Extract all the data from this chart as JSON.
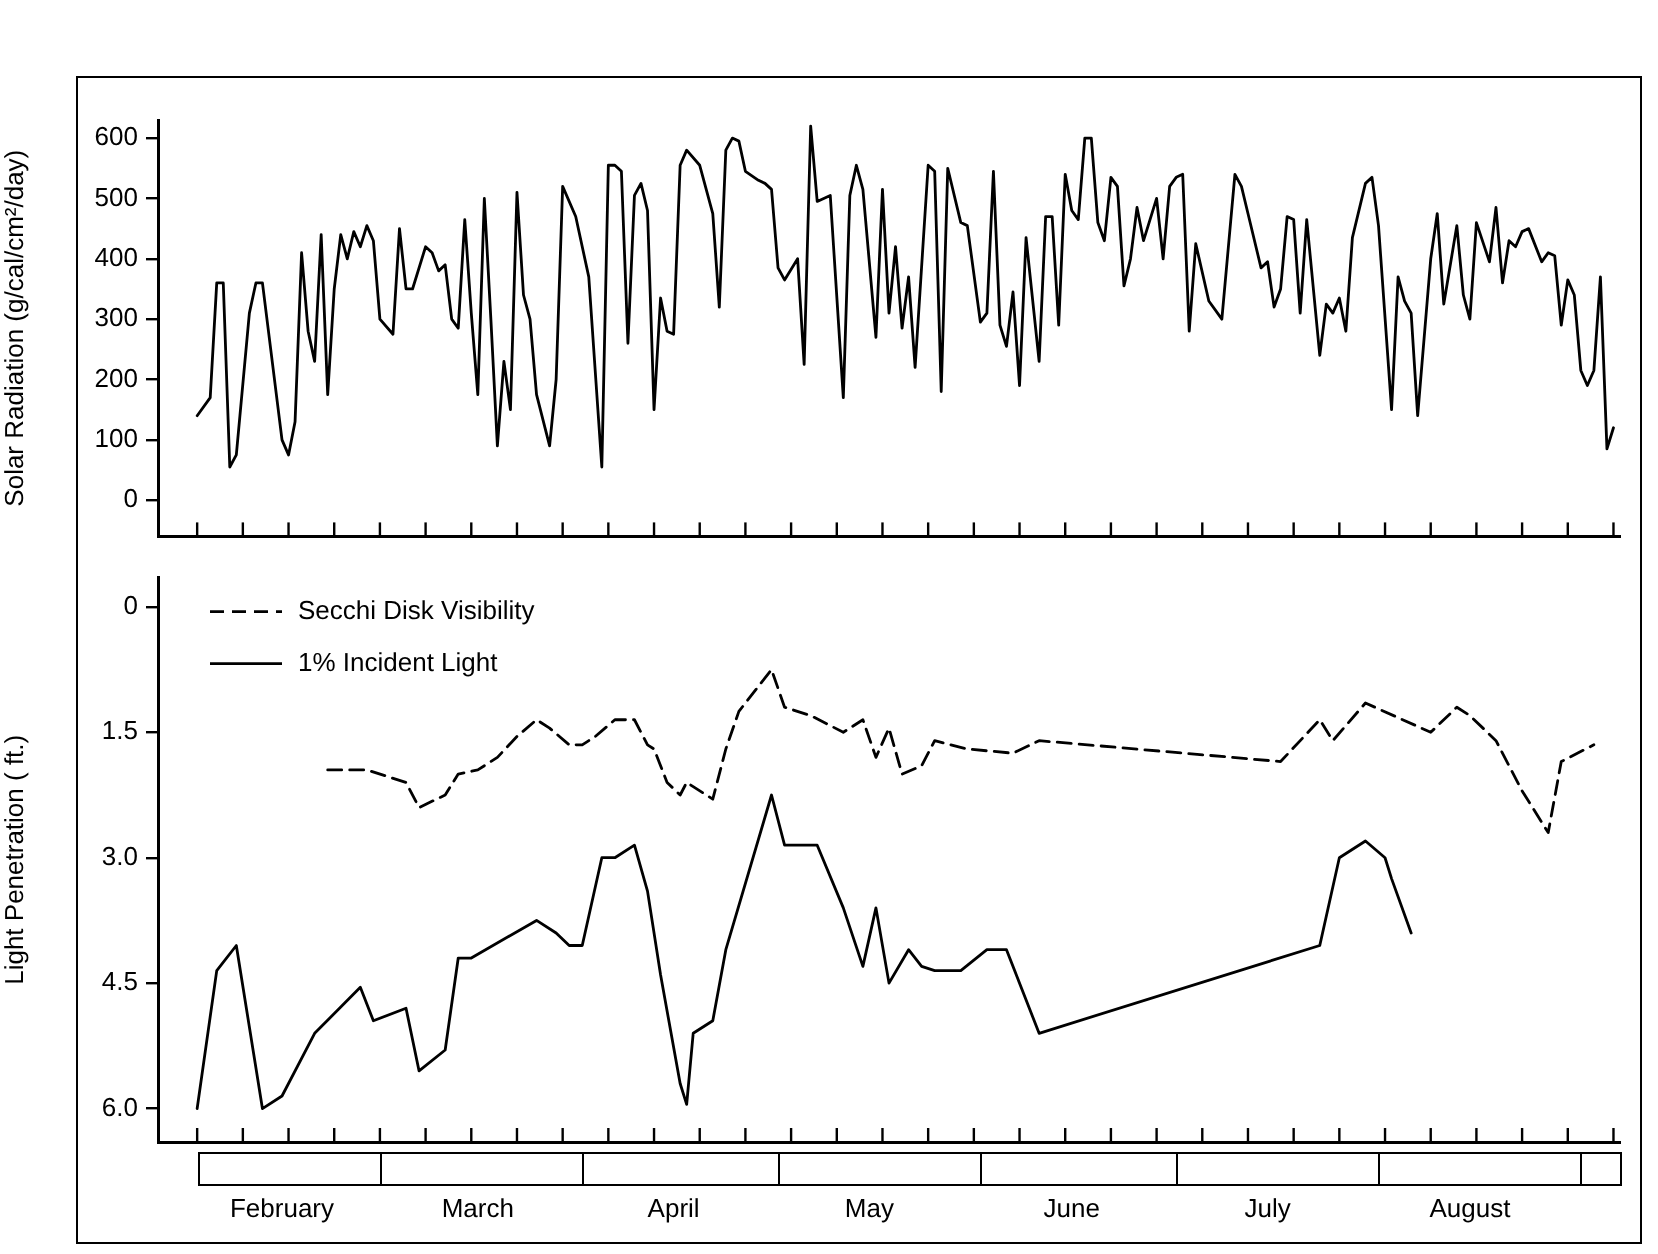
{
  "chart_data": [
    {
      "type": "line",
      "ylabel": "Solar Radiation (g/cal/cm²/day)",
      "tick_labels": "y",
      "xlim": [
        "--01-26",
        "--09-07"
      ],
      "xticks": [
        {
          "value": "--02-01",
          "label": null
        },
        {
          "value": "--02-08",
          "label": null
        },
        {
          "value": "--02-15",
          "label": null
        },
        {
          "value": "--02-22",
          "label": null
        },
        {
          "value": "--03-01",
          "label": null
        },
        {
          "value": "--03-08",
          "label": null
        },
        {
          "value": "--03-15",
          "label": null
        },
        {
          "value": "--03-22",
          "label": null
        },
        {
          "value": "--03-29",
          "label": null
        },
        {
          "value": "--04-05",
          "label": null
        },
        {
          "value": "--04-12",
          "label": null
        },
        {
          "value": "--04-19",
          "label": null
        },
        {
          "value": "--04-26",
          "label": null
        },
        {
          "value": "--05-03",
          "label": null
        },
        {
          "value": "--05-10",
          "label": null
        },
        {
          "value": "--05-17",
          "label": null
        },
        {
          "value": "--05-24",
          "label": null
        },
        {
          "value": "--05-31",
          "label": null
        },
        {
          "value": "--06-07",
          "label": null
        },
        {
          "value": "--06-14",
          "label": null
        },
        {
          "value": "--06-21",
          "label": null
        },
        {
          "value": "--06-28",
          "label": null
        },
        {
          "value": "--07-05",
          "label": null
        },
        {
          "value": "--07-12",
          "label": null
        },
        {
          "value": "--07-19",
          "label": null
        },
        {
          "value": "--07-26",
          "label": null
        },
        {
          "value": "--08-02",
          "label": null
        },
        {
          "value": "--08-09",
          "label": null
        },
        {
          "value": "--08-16",
          "label": null
        },
        {
          "value": "--08-23",
          "label": null
        },
        {
          "value": "--08-30",
          "label": null
        },
        {
          "value": "--09-06",
          "label": null
        },
        {
          "value": "--02-14",
          "label": "February"
        },
        {
          "value": "--03-16",
          "label": "March"
        },
        {
          "value": "--04-15",
          "label": "April"
        },
        {
          "value": "--05-15",
          "label": "May"
        },
        {
          "value": "--06-15",
          "label": "June"
        },
        {
          "value": "--07-15",
          "label": "July"
        },
        {
          "value": "--08-15",
          "label": "August"
        }
      ],
      "ylim": [
        -60,
        630
      ],
      "yticks": [
        0,
        100,
        200,
        300,
        400,
        500,
        600
      ],
      "x": [
        "--02-01",
        "--02-03",
        "--02-04",
        "--02-05",
        "--02-06",
        "--02-07",
        "--02-09",
        "--02-10",
        "--02-11",
        "--02-14",
        "--02-15",
        "--02-16",
        "--02-17",
        "--02-18",
        "--02-19",
        "--02-20",
        "--02-21",
        "--02-22",
        "--02-23",
        "--02-24",
        "--02-25",
        "--02-26",
        "--02-27",
        "--02-28",
        "--03-01",
        "--03-03",
        "--03-04",
        "--03-05",
        "--03-06",
        "--03-08",
        "--03-09",
        "--03-10",
        "--03-11",
        "--03-12",
        "--03-13",
        "--03-14",
        "--03-15",
        "--03-16",
        "--03-17",
        "--03-18",
        "--03-19",
        "--03-20",
        "--03-21",
        "--03-22",
        "--03-23",
        "--03-24",
        "--03-25",
        "--03-27",
        "--03-28",
        "--03-29",
        "--03-31",
        "--04-02",
        "--04-04",
        "--04-05",
        "--04-06",
        "--04-07",
        "--04-08",
        "--04-09",
        "--04-10",
        "--04-11",
        "--04-12",
        "--04-13",
        "--04-14",
        "--04-15",
        "--04-16",
        "--04-17",
        "--04-19",
        "--04-21",
        "--04-22",
        "--04-23",
        "--04-24",
        "--04-25",
        "--04-26",
        "--04-28",
        "--04-29",
        "--04-30",
        "--05-01",
        "--05-02",
        "--05-04",
        "--05-05",
        "--05-06",
        "--05-07",
        "--05-09",
        "--05-11",
        "--05-12",
        "--05-13",
        "--05-14",
        "--05-16",
        "--05-17",
        "--05-18",
        "--05-19",
        "--05-20",
        "--05-21",
        "--05-22",
        "--05-24",
        "--05-25",
        "--05-26",
        "--05-27",
        "--05-29",
        "--05-30",
        "--06-01",
        "--06-02",
        "--06-03",
        "--06-04",
        "--06-05",
        "--06-06",
        "--06-07",
        "--06-08",
        "--06-10",
        "--06-11",
        "--06-12",
        "--06-13",
        "--06-14",
        "--06-15",
        "--06-16",
        "--06-17",
        "--06-18",
        "--06-19",
        "--06-20",
        "--06-21",
        "--06-22",
        "--06-23",
        "--06-24",
        "--06-25",
        "--06-26",
        "--06-28",
        "--06-29",
        "--06-30",
        "--07-01",
        "--07-02",
        "--07-03",
        "--07-04",
        "--07-06",
        "--07-08",
        "--07-10",
        "--07-11",
        "--07-12",
        "--07-14",
        "--07-15",
        "--07-16",
        "--07-17",
        "--07-18",
        "--07-19",
        "--07-20",
        "--07-21",
        "--07-23",
        "--07-24",
        "--07-25",
        "--07-26",
        "--07-27",
        "--07-28",
        "--07-30",
        "--07-31",
        "--08-01",
        "--08-03",
        "--08-04",
        "--08-05",
        "--08-06",
        "--08-07",
        "--08-09",
        "--08-10",
        "--08-11",
        "--08-13",
        "--08-14",
        "--08-15",
        "--08-16",
        "--08-18",
        "--08-19",
        "--08-20",
        "--08-21",
        "--08-22",
        "--08-23",
        "--08-24",
        "--08-26",
        "--08-27",
        "--08-28",
        "--08-29",
        "--08-30",
        "--08-31",
        "--09-01",
        "--09-02",
        "--09-03",
        "--09-04",
        "--09-05",
        "--09-06"
      ],
      "series": [
        {
          "color": "#000000",
          "values": [
            140,
            170,
            360,
            360,
            55,
            75,
            310,
            360,
            360,
            100,
            75,
            130,
            410,
            280,
            230,
            440,
            175,
            350,
            440,
            400,
            445,
            420,
            455,
            430,
            300,
            275,
            450,
            350,
            350,
            420,
            410,
            380,
            390,
            300,
            285,
            465,
            310,
            175,
            500,
            300,
            90,
            230,
            150,
            510,
            340,
            300,
            175,
            90,
            200,
            520,
            470,
            370,
            55,
            555,
            555,
            545,
            260,
            505,
            525,
            480,
            150,
            335,
            280,
            275,
            555,
            580,
            555,
            475,
            320,
            580,
            600,
            595,
            545,
            530,
            525,
            515,
            385,
            365,
            400,
            225,
            620,
            495,
            505,
            170,
            505,
            555,
            515,
            270,
            515,
            310,
            420,
            285,
            370,
            220,
            555,
            545,
            180,
            550,
            460,
            455,
            295,
            310,
            545,
            290,
            255,
            345,
            190,
            435,
            230,
            470,
            470,
            290,
            540,
            480,
            465,
            600,
            600,
            460,
            430,
            535,
            520,
            355,
            400,
            485,
            430,
            500,
            400,
            520,
            535,
            540,
            280,
            425,
            330,
            300,
            540,
            520,
            475,
            385,
            395,
            320,
            350,
            470,
            465,
            310,
            465,
            240,
            325,
            310,
            335,
            280,
            435,
            525,
            535,
            455,
            150,
            370,
            330,
            310,
            140,
            400,
            475,
            325,
            455,
            340,
            300,
            460,
            395,
            485,
            360,
            430,
            420,
            445,
            450,
            395,
            410,
            405,
            290,
            365,
            340,
            215,
            190,
            215,
            370,
            85,
            120
          ]
        }
      ]
    },
    {
      "type": "line",
      "ylabel": "Light Penetration ( ft.)",
      "legend": "top left",
      "xlim": [
        "--01-26",
        "--09-07"
      ],
      "xticks": [
        {
          "value": "--02-01",
          "label": null
        },
        {
          "value": "--02-08",
          "label": null
        },
        {
          "value": "--02-15",
          "label": null
        },
        {
          "value": "--02-22",
          "label": null
        },
        {
          "value": "--03-01",
          "label": null
        },
        {
          "value": "--03-08",
          "label": null
        },
        {
          "value": "--03-15",
          "label": null
        },
        {
          "value": "--03-22",
          "label": null
        },
        {
          "value": "--03-29",
          "label": null
        },
        {
          "value": "--04-05",
          "label": null
        },
        {
          "value": "--04-12",
          "label": null
        },
        {
          "value": "--04-19",
          "label": null
        },
        {
          "value": "--04-26",
          "label": null
        },
        {
          "value": "--05-03",
          "label": null
        },
        {
          "value": "--05-10",
          "label": null
        },
        {
          "value": "--05-17",
          "label": null
        },
        {
          "value": "--05-24",
          "label": null
        },
        {
          "value": "--05-31",
          "label": null
        },
        {
          "value": "--06-07",
          "label": null
        },
        {
          "value": "--06-14",
          "label": null
        },
        {
          "value": "--06-21",
          "label": null
        },
        {
          "value": "--06-28",
          "label": null
        },
        {
          "value": "--07-05",
          "label": null
        },
        {
          "value": "--07-12",
          "label": null
        },
        {
          "value": "--07-19",
          "label": null
        },
        {
          "value": "--07-26",
          "label": null
        },
        {
          "value": "--08-02",
          "label": null
        },
        {
          "value": "--08-09",
          "label": null
        },
        {
          "value": "--08-16",
          "label": null
        },
        {
          "value": "--08-23",
          "label": null
        },
        {
          "value": "--08-30",
          "label": null
        },
        {
          "value": "--09-06",
          "label": null
        },
        {
          "value": "--02-14",
          "label": "February"
        },
        {
          "value": "--03-16",
          "label": "March"
        },
        {
          "value": "--04-15",
          "label": "April"
        },
        {
          "value": "--05-15",
          "label": "May"
        },
        {
          "value": "--06-15",
          "label": "June"
        },
        {
          "value": "--07-15",
          "label": "July"
        },
        {
          "value": "--08-15",
          "label": "August"
        }
      ],
      "ylim": [
        6.4,
        -0.35
      ],
      "yticks": [
        0,
        {
          "value": 1.5,
          "label": "1.5"
        },
        {
          "value": 3,
          "label": "3.0"
        },
        {
          "value": 4.5,
          "label": "4.5"
        },
        {
          "value": 6,
          "label": "6.0"
        }
      ],
      "series": [
        {
          "name": "Secchi Disk Visibility",
          "color": "#000000",
          "line_style": "dashed",
          "x": [
            "--02-21",
            "--02-27",
            "--03-05",
            "--03-07",
            "--03-11",
            "--03-13",
            "--03-16",
            "--03-19",
            "--03-22",
            "--03-25",
            "--03-27",
            "--03-30",
            "--04-01",
            "--04-03",
            "--04-06",
            "--04-09",
            "--04-11",
            "--04-12",
            "--04-14",
            "--04-16",
            "--04-17",
            "--04-18",
            "--04-21",
            "--04-23",
            "--04-25",
            "--04-30",
            "--05-02",
            "--05-06",
            "--05-11",
            "--05-14",
            "--05-16",
            "--05-18",
            "--05-20",
            "--05-23",
            "--05-25",
            "--05-30",
            "--06-06",
            "--06-10",
            "--07-17",
            "--07-23",
            "--07-25",
            "--07-30",
            "--08-09",
            "--08-13",
            "--08-15",
            "--08-19",
            "--08-23",
            "--08-27",
            "--08-29",
            "--09-03"
          ],
          "values": [
            1.95,
            1.95,
            2.1,
            2.4,
            2.25,
            2.0,
            1.95,
            1.8,
            1.55,
            1.35,
            1.45,
            1.65,
            1.65,
            1.55,
            1.35,
            1.35,
            1.65,
            1.7,
            2.1,
            2.25,
            2.1,
            2.15,
            2.3,
            1.7,
            1.25,
            0.75,
            1.2,
            1.3,
            1.5,
            1.35,
            1.8,
            1.45,
            2.0,
            1.9,
            1.6,
            1.7,
            1.75,
            1.6,
            1.85,
            1.35,
            1.6,
            1.15,
            1.5,
            1.2,
            1.3,
            1.6,
            2.2,
            2.7,
            1.85,
            1.65
          ]
        },
        {
          "name": "1% Incident Light",
          "color": "#000000",
          "line_style": "solid",
          "x": [
            "--02-01",
            "--02-04",
            "--02-07",
            "--02-11",
            "--02-14",
            "--02-19",
            "--02-26",
            "--02-28",
            "--03-05",
            "--03-07",
            "--03-11",
            "--03-13",
            "--03-15",
            "--03-25",
            "--03-28",
            "--03-30",
            "--04-01",
            "--04-04",
            "--04-06",
            "--04-09",
            "--04-11",
            "--04-13",
            "--04-16",
            "--04-17",
            "--04-18",
            "--04-21",
            "--04-23",
            "--04-30",
            "--05-02",
            "--05-07",
            "--05-11",
            "--05-14",
            "--05-16",
            "--05-18",
            "--05-21",
            "--05-23",
            "--05-25",
            "--05-29",
            "--06-02",
            "--06-05",
            "--06-10",
            "--07-23",
            "--07-26",
            "--07-30",
            "--08-02",
            "--08-03",
            "--08-06"
          ],
          "values": [
            6.0,
            4.35,
            4.05,
            6.0,
            5.85,
            5.1,
            4.55,
            4.95,
            4.8,
            5.55,
            5.3,
            4.2,
            4.2,
            3.75,
            3.9,
            4.05,
            4.05,
            3.0,
            3.0,
            2.85,
            3.4,
            4.4,
            5.7,
            5.95,
            5.1,
            4.95,
            4.1,
            2.25,
            2.85,
            2.85,
            3.6,
            4.3,
            3.6,
            4.5,
            4.1,
            4.3,
            4.35,
            4.35,
            4.1,
            4.1,
            5.1,
            4.05,
            3.0,
            2.8,
            3.0,
            3.25,
            3.9
          ]
        }
      ]
    }
  ]
}
